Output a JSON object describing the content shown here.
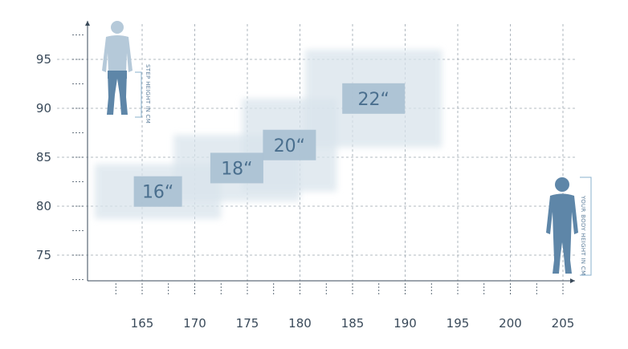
{
  "chart_data": {
    "type": "scatter",
    "title": "",
    "xlabel": "YOUR BODY HEIGHT IN CM",
    "ylabel": "STEP HEIGHT IN CM",
    "xlim": [
      160.5,
      206
    ],
    "ylim": [
      72,
      98
    ],
    "x_ticks": [
      165,
      170,
      175,
      180,
      185,
      190,
      195,
      200,
      205
    ],
    "y_ticks": [
      75,
      80,
      85,
      90,
      95
    ],
    "grid": true,
    "series": [
      {
        "name": "16“",
        "x_range": [
          160.5,
          172.5
        ],
        "y_range": [
          78.7,
          84.3
        ]
      },
      {
        "name": "18“",
        "x_range": [
          168,
          180
        ],
        "y_range": [
          80.5,
          87.3
        ]
      },
      {
        "name": "20“",
        "x_range": [
          174.5,
          183.5
        ],
        "y_range": [
          81.5,
          91
        ]
      },
      {
        "name": "22“",
        "x_range": [
          180.5,
          193.5
        ],
        "y_range": [
          86,
          96
        ]
      }
    ],
    "colors": {
      "axis": "#3a4a5a",
      "grid": "#9aa5ae",
      "box_fill": "#d9e4ec",
      "label_fill": "#a9c0d1",
      "label_text": "#4a6f8e",
      "figure_light": "#b5c9d9",
      "figure_dark": "#5e86a8",
      "bracket": "#8ab0cc"
    }
  }
}
